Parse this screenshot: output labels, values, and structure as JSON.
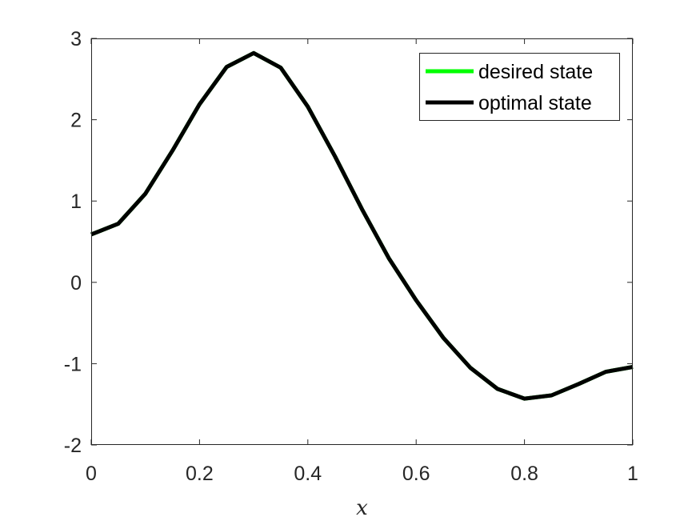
{
  "chart_data": {
    "type": "line",
    "title": "",
    "xlabel": "x",
    "ylabel": "",
    "xlim": [
      0,
      1
    ],
    "ylim": [
      -2,
      3
    ],
    "xticks": [
      0,
      0.2,
      0.4,
      0.6,
      0.8,
      1
    ],
    "xtick_labels": [
      "0",
      "0.2",
      "0.4",
      "0.6",
      "0.8",
      "1"
    ],
    "yticks": [
      -2,
      -1,
      0,
      1,
      2,
      3
    ],
    "ytick_labels": [
      "-2",
      "-1",
      "0",
      "1",
      "2",
      "3"
    ],
    "grid": false,
    "legend_position": "top-right",
    "series": [
      {
        "name": "desired state",
        "color": "#00ff00",
        "x": [
          0,
          0.05,
          0.1,
          0.15,
          0.2,
          0.25,
          0.3,
          0.35,
          0.4,
          0.45,
          0.5,
          0.55,
          0.6,
          0.65,
          0.7,
          0.75,
          0.8,
          0.85,
          0.9,
          0.95,
          1
        ],
        "y": [
          0.59,
          0.72,
          1.09,
          1.62,
          2.19,
          2.65,
          2.82,
          2.64,
          2.16,
          1.55,
          0.9,
          0.29,
          -0.22,
          -0.68,
          -1.05,
          -1.31,
          -1.43,
          -1.39,
          -1.25,
          -1.1,
          -1.04
        ]
      },
      {
        "name": "optimal state",
        "color": "#000000",
        "x": [
          0,
          0.05,
          0.1,
          0.15,
          0.2,
          0.25,
          0.3,
          0.35,
          0.4,
          0.45,
          0.5,
          0.55,
          0.6,
          0.65,
          0.7,
          0.75,
          0.8,
          0.85,
          0.9,
          0.95,
          1
        ],
        "y": [
          0.59,
          0.72,
          1.09,
          1.62,
          2.19,
          2.65,
          2.82,
          2.64,
          2.16,
          1.55,
          0.9,
          0.29,
          -0.22,
          -0.68,
          -1.05,
          -1.31,
          -1.43,
          -1.39,
          -1.25,
          -1.1,
          -1.04
        ]
      }
    ]
  }
}
